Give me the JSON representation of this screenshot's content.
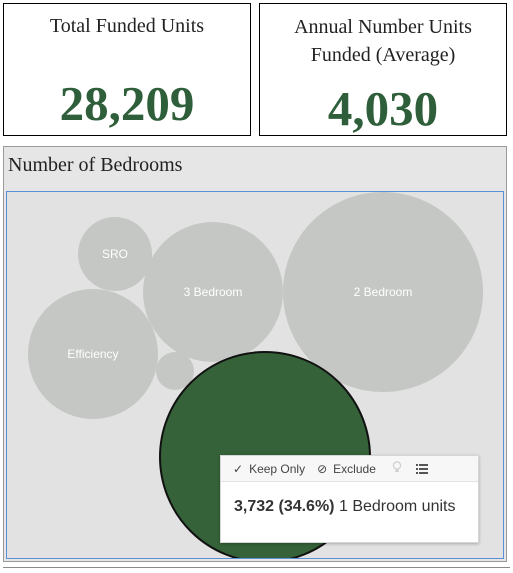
{
  "kpis": {
    "total": {
      "title": "Total Funded Units",
      "value": "28,209"
    },
    "annual": {
      "title": "Annual Number Units Funded (Average)",
      "value": "4,030"
    }
  },
  "bubble_panel": {
    "title": "Number of Bedrooms",
    "bubbles": [
      {
        "label": "SRO"
      },
      {
        "label": "3 Bedroom"
      },
      {
        "label": "2 Bedroom"
      },
      {
        "label": "Efficiency"
      },
      {
        "label": ""
      },
      {
        "label": ""
      }
    ]
  },
  "tooltip": {
    "keep_only": "Keep Only",
    "exclude": "Exclude",
    "value": "3,732 (34.6%)",
    "suffix": "1 Bedroom units"
  },
  "colors": {
    "accent": "#2f5f3a",
    "bubble": "#c4c7c3",
    "selected_bubble": "#356239"
  }
}
